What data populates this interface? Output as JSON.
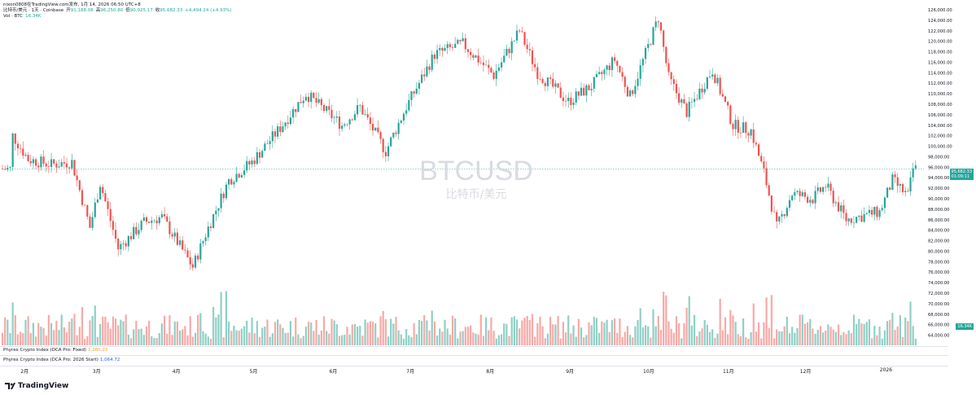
{
  "header": {
    "line1_prefix": "nixon0808在TradingView.com发布, 1月 14, 2026 06:50 UTC+8",
    "symbol": "比特币/美元 · 1天 · Coinbase",
    "o_label": "开",
    "o": "91,188.08",
    "h_label": "高",
    "h": "96,250.80",
    "l_label": "低",
    "l": "90,925.17",
    "c_label": "收",
    "c": "95,682.33",
    "change": "+4,494.24 (+4.93%)",
    "vol_label": "Vol · BTC",
    "vol": "16.34K"
  },
  "watermark": {
    "title": "BTCUSD",
    "subtitle": "比特币/美元"
  },
  "price_tag": {
    "price": "95,682.33",
    "countdown": "01:09:11",
    "vol": "16.34K"
  },
  "indicators": [
    {
      "label": "Phyrex Crypto Index (DCA Pro: Fixed)",
      "value": "1,260.22"
    },
    {
      "label": "Phyrex Crypto Index (DCA Pro: 2026 Start)",
      "value": "1,064.72"
    }
  ],
  "colors": {
    "up": "#26a69a",
    "down": "#ef5350",
    "vol_up": "#8fd0c6",
    "vol_down": "#f7a9a7"
  },
  "logo": {
    "text": "TradingView"
  },
  "chart_data": {
    "type": "candlestick",
    "ylim": [
      63000,
      126000
    ],
    "y_ticks": [
      126000,
      124000,
      122000,
      120000,
      118000,
      116000,
      114000,
      112000,
      110000,
      108000,
      106000,
      104000,
      102000,
      100000,
      98000,
      96000,
      94000,
      92000,
      90000,
      88000,
      86000,
      84000,
      82000,
      80000,
      78000,
      76000,
      74000,
      72000,
      70000,
      68000,
      66000,
      64000
    ],
    "y_tick_labels": [
      "126,000.00",
      "124,000.00",
      "122,000.00",
      "120,000.00",
      "118,000.00",
      "116,000.00",
      "114,000.00",
      "112,000.00",
      "110,000.00",
      "108,000.00",
      "106,000.00",
      "104,000.00",
      "102,000.00",
      "100,000.00",
      "98,000.00",
      "96,000.00",
      "94,000.00",
      "92,000.00",
      "90,000.00",
      "88,000.00",
      "86,000.00",
      "84,000.00",
      "82,000.00",
      "80,000.00",
      "78,000.00",
      "76,000.00",
      "74,000.00",
      "72,000.00",
      "70,000.00",
      "68,000.00",
      "66,000.00",
      "64,000.00"
    ],
    "x_labels": [
      "2月",
      "3月",
      "4月",
      "5月",
      "6月",
      "7月",
      "8月",
      "9月",
      "10月",
      "11月",
      "12月",
      "2026"
    ],
    "close_path": [
      [
        "2025-01-28",
        102000
      ],
      [
        "2025-02-03",
        97500
      ],
      [
        "2025-02-12",
        96500
      ],
      [
        "2025-02-20",
        97000
      ],
      [
        "2025-02-27",
        84500
      ],
      [
        "2025-03-03",
        93000
      ],
      [
        "2025-03-10",
        80500
      ],
      [
        "2025-03-20",
        85500
      ],
      [
        "2025-03-27",
        86500
      ],
      [
        "2025-04-08",
        77000
      ],
      [
        "2025-04-14",
        84500
      ],
      [
        "2025-04-22",
        93500
      ],
      [
        "2025-05-01",
        97000
      ],
      [
        "2025-05-12",
        103500
      ],
      [
        "2025-05-22",
        110000
      ],
      [
        "2025-06-05",
        104000
      ],
      [
        "2025-06-12",
        107500
      ],
      [
        "2025-06-22",
        99000
      ],
      [
        "2025-06-30",
        107500
      ],
      [
        "2025-07-11",
        117500
      ],
      [
        "2025-07-22",
        119500
      ],
      [
        "2025-08-03",
        113500
      ],
      [
        "2025-08-13",
        122000
      ],
      [
        "2025-08-20",
        114000
      ],
      [
        "2025-09-01",
        108500
      ],
      [
        "2025-09-10",
        111500
      ],
      [
        "2025-09-19",
        116500
      ],
      [
        "2025-09-25",
        109500
      ],
      [
        "2025-10-02",
        119000
      ],
      [
        "2025-10-06",
        124500
      ],
      [
        "2025-10-10",
        113000
      ],
      [
        "2025-10-17",
        106500
      ],
      [
        "2025-10-27",
        114500
      ],
      [
        "2025-11-04",
        104000
      ],
      [
        "2025-11-11",
        103000
      ],
      [
        "2025-11-16",
        95000
      ],
      [
        "2025-11-21",
        84500
      ],
      [
        "2025-11-27",
        91000
      ],
      [
        "2025-12-05",
        90000
      ],
      [
        "2025-12-10",
        92500
      ],
      [
        "2025-12-18",
        86000
      ],
      [
        "2025-12-31",
        87500
      ],
      [
        "2026-01-05",
        93500
      ],
      [
        "2026-01-11",
        90500
      ],
      [
        "2026-01-13",
        95682
      ]
    ],
    "last_close": 95682.33
  }
}
